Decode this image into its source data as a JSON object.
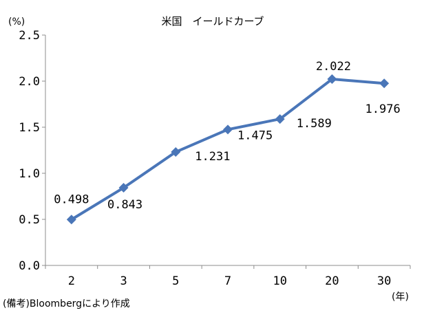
{
  "chart_data": {
    "type": "line",
    "title": "米国　イールドカーブ",
    "ylabel": "(%)",
    "xlabel": "(年)",
    "categories": [
      "2",
      "3",
      "5",
      "7",
      "10",
      "20",
      "30"
    ],
    "values": [
      0.498,
      0.843,
      1.231,
      1.475,
      1.589,
      2.022,
      1.976
    ],
    "data_labels": [
      "0.498",
      "0.843",
      "1.231",
      "1.475",
      "1.589",
      "2.022",
      "1.976"
    ],
    "y_ticks": [
      "0.0",
      "0.5",
      "1.0",
      "1.5",
      "2.0",
      "2.5"
    ],
    "ylim": [
      0,
      2.5
    ],
    "grid": false,
    "series_color": "#4a76b8",
    "marker": "diamond"
  },
  "note": "(備考)Bloombergにより作成"
}
